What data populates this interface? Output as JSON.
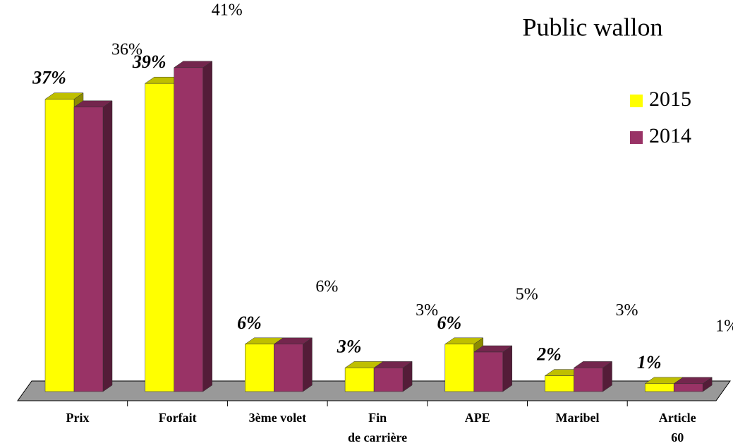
{
  "chart_data": {
    "type": "bar3d",
    "title": "Public wallon",
    "categories": [
      "Prix",
      "Forfait",
      "3ème volet",
      "Fin\nde carrière",
      "APE",
      "Maribel",
      "Article\n60"
    ],
    "series": [
      {
        "name": "2015",
        "color": "#ffff00",
        "values": [
          37,
          39,
          6,
          3,
          6,
          2,
          1
        ],
        "value_labels": [
          "37%",
          "39%",
          "6%",
          "3%",
          "6%",
          "2%",
          "1%"
        ]
      },
      {
        "name": "2014",
        "color": "#993366",
        "values": [
          36,
          41,
          6,
          3,
          5,
          3,
          1
        ],
        "value_labels": [
          "36%",
          "41%",
          "6%",
          "3%",
          "5%",
          "3%",
          "1%"
        ]
      }
    ],
    "legend": "upper right"
  }
}
